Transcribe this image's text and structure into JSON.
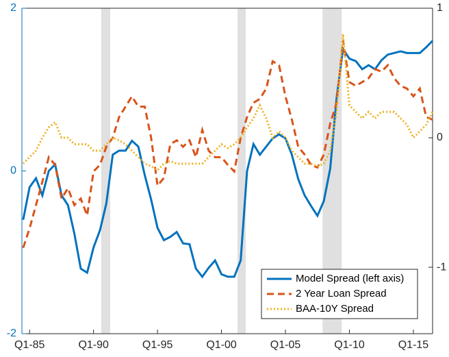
{
  "chart_data": {
    "type": "line",
    "x": [
      1984.5,
      1985.0,
      1985.5,
      1986.0,
      1986.5,
      1987.0,
      1987.5,
      1988.0,
      1988.5,
      1989.0,
      1989.5,
      1990.0,
      1990.5,
      1991.0,
      1991.5,
      1992.0,
      1992.5,
      1993.0,
      1993.5,
      1994.0,
      1994.5,
      1995.0,
      1995.5,
      1996.0,
      1996.5,
      1997.0,
      1997.5,
      1998.0,
      1998.5,
      1999.0,
      1999.5,
      2000.0,
      2000.5,
      2001.0,
      2001.5,
      2002.0,
      2002.5,
      2003.0,
      2003.5,
      2004.0,
      2004.5,
      2005.0,
      2005.5,
      2006.0,
      2006.5,
      2007.0,
      2007.5,
      2008.0,
      2008.5,
      2009.0,
      2009.5,
      2010.0,
      2010.5,
      2011.0,
      2011.5,
      2012.0,
      2012.5,
      2013.0,
      2013.5,
      2014.0,
      2014.5,
      2015.0,
      2015.5,
      2016.0,
      2016.5
    ],
    "series": [
      {
        "name": "Model Spread (left axis)",
        "color": "#0072bd",
        "style": "solid",
        "axis": "y",
        "values": [
          -0.6,
          -0.2,
          -0.09,
          -0.3,
          0.0,
          0.08,
          -0.3,
          -0.42,
          -0.77,
          -1.2,
          -1.25,
          -0.94,
          -0.73,
          -0.4,
          0.2,
          0.25,
          0.25,
          0.37,
          0.3,
          -0.05,
          -0.35,
          -0.7,
          -0.85,
          -0.81,
          -0.75,
          -0.89,
          -0.9,
          -1.2,
          -1.3,
          -1.19,
          -1.1,
          -1.27,
          -1.3,
          -1.3,
          -1.1,
          0.0,
          0.33,
          0.2,
          0.3,
          0.4,
          0.45,
          0.4,
          0.2,
          -0.1,
          -0.3,
          -0.43,
          -0.55,
          -0.37,
          0.03,
          0.9,
          1.5,
          1.38,
          1.35,
          1.25,
          1.3,
          1.25,
          1.36,
          1.43,
          1.45,
          1.47,
          1.45,
          1.45,
          1.45,
          1.52,
          1.6
        ]
      },
      {
        "name": "2 Year Loan Spread",
        "color": "#d95319",
        "style": "dashed",
        "axis": "y2",
        "values": [
          -0.85,
          -0.7,
          -0.52,
          -0.34,
          -0.15,
          -0.21,
          -0.47,
          -0.39,
          -0.52,
          -0.47,
          -0.6,
          -0.26,
          -0.21,
          -0.07,
          0.0,
          0.16,
          0.24,
          0.32,
          0.24,
          0.24,
          0.0,
          -0.37,
          -0.31,
          -0.05,
          -0.02,
          -0.07,
          -0.02,
          -0.15,
          0.06,
          -0.1,
          -0.15,
          -0.15,
          -0.21,
          -0.26,
          0.0,
          0.16,
          0.27,
          0.3,
          0.38,
          0.59,
          0.56,
          0.32,
          0.14,
          -0.07,
          -0.13,
          -0.21,
          -0.23,
          -0.13,
          0.11,
          0.27,
          0.75,
          0.43,
          0.4,
          0.43,
          0.46,
          0.53,
          0.51,
          0.56,
          0.46,
          0.4,
          0.38,
          0.32,
          0.38,
          0.16,
          0.14
        ]
      },
      {
        "name": "BAA-10Y Spread",
        "color": "#edb120",
        "style": "dotted",
        "axis": "y2",
        "values": [
          -0.2,
          -0.15,
          -0.1,
          0.0,
          0.08,
          0.12,
          0.0,
          0.0,
          -0.05,
          -0.05,
          -0.05,
          -0.1,
          -0.1,
          -0.05,
          0.0,
          -0.02,
          -0.05,
          -0.1,
          -0.15,
          -0.2,
          -0.22,
          -0.25,
          -0.2,
          -0.18,
          -0.2,
          -0.2,
          -0.2,
          -0.2,
          -0.2,
          -0.15,
          -0.1,
          -0.05,
          -0.08,
          -0.05,
          0.0,
          0.08,
          0.15,
          0.25,
          0.15,
          0.0,
          0.05,
          0.0,
          -0.1,
          -0.15,
          -0.2,
          -0.2,
          -0.22,
          -0.2,
          -0.1,
          0.2,
          0.8,
          0.25,
          0.2,
          0.15,
          0.2,
          0.15,
          0.2,
          0.2,
          0.2,
          0.15,
          0.1,
          0.0,
          0.05,
          0.1,
          0.2
        ]
      }
    ],
    "shaded_periods": [
      [
        1990.6,
        1991.3
      ],
      [
        2001.25,
        2001.9
      ],
      [
        2007.9,
        2009.4
      ]
    ],
    "shade_color": "#e0e0e0",
    "xlim": [
      1984.4,
      2016.5
    ],
    "xticks": [
      {
        "value": 1985,
        "label": "Q1-85"
      },
      {
        "value": 1990,
        "label": "Q1-90"
      },
      {
        "value": 1995,
        "label": "Q1-95"
      },
      {
        "value": 2000,
        "label": "Q1-00"
      },
      {
        "value": 2005,
        "label": "Q1-05"
      },
      {
        "value": 2010,
        "label": "Q1-10"
      },
      {
        "value": 2015,
        "label": "Q1-15"
      }
    ],
    "ylim": [
      -2,
      2
    ],
    "yticks": [
      -2,
      0,
      2
    ],
    "y2lim": [
      -1.513,
      1
    ],
    "y2ticks": [
      -1,
      0,
      1
    ],
    "legend": "lower right"
  }
}
